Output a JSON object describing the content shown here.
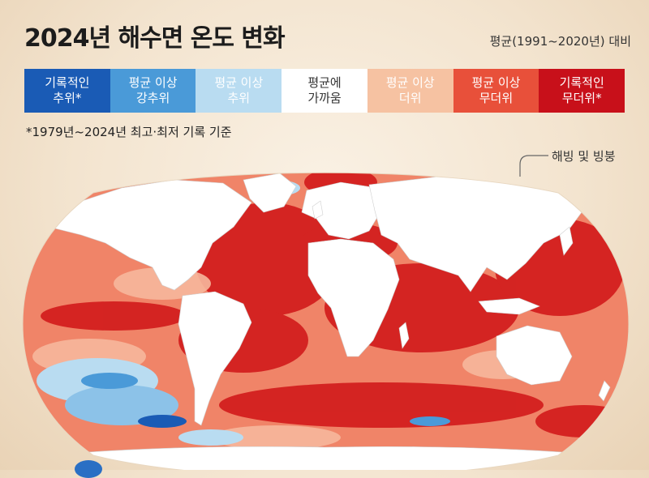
{
  "title": "2024년 해수면 온도 변화",
  "subtitle": "평균(1991~2020년) 대비",
  "legend": [
    {
      "label": "기록적인\n추위*",
      "color": "#1a5bb5",
      "text_color": "#ffffff"
    },
    {
      "label": "평균 이상\n강추위",
      "color": "#4a9ad8",
      "text_color": "#ffffff"
    },
    {
      "label": "평균 이상\n추위",
      "color": "#b9dcf1",
      "text_color": "#ffffff"
    },
    {
      "label": "평균에\n가까움",
      "color": "#ffffff",
      "text_color": "#333333"
    },
    {
      "label": "평균 이상\n더위",
      "color": "#f6c2a2",
      "text_color": "#ffffff"
    },
    {
      "label": "평균 이상\n무더위",
      "color": "#e8503a",
      "text_color": "#ffffff"
    },
    {
      "label": "기록적인\n무더위*",
      "color": "#c8101a",
      "text_color": "#ffffff"
    }
  ],
  "note": "*1979년~2024년 최고·최저 기록 기준",
  "ice_label": "해빙 및 빙붕",
  "colors": {
    "record_hot": "#c8101a",
    "much_above": "#e2392a",
    "above": "#f4a58a",
    "near": "#fbe3d6",
    "below": "#b9dcf1",
    "much_below": "#4a9ad8",
    "record_cold": "#1a5bb5",
    "land": "#ffffff"
  }
}
